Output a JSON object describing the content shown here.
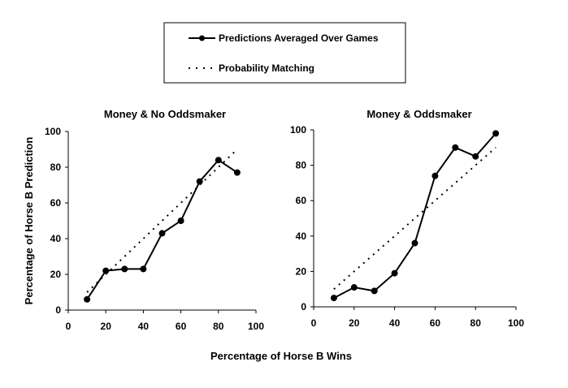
{
  "legend": {
    "series_line_label": "Predictions Averaged Over Games",
    "series_dotted_label": "Probability Matching",
    "placement": "top-center"
  },
  "shared_labels": {
    "xlabel": "Percentage of Horse B Wins",
    "ylabel": "Percentage of Horse B Prediction"
  },
  "chart_data": [
    {
      "type": "line",
      "title": "Money & No Oddsmaker",
      "xlabel": "Percentage of Horse B Wins",
      "ylabel": "Percentage of Horse B Prediction",
      "xlim": [
        0,
        100
      ],
      "ylim": [
        0,
        100
      ],
      "x_ticks": [
        "0",
        "20",
        "40",
        "60",
        "80",
        "100"
      ],
      "y_ticks": [
        "0",
        "20",
        "40",
        "60",
        "80",
        "100"
      ],
      "grid": false,
      "series": [
        {
          "name": "Predictions Averaged Over Games",
          "style": "solid-with-markers",
          "color": "#000000",
          "x": [
            10,
            20,
            30,
            40,
            50,
            60,
            70,
            80,
            90
          ],
          "y": [
            6,
            22,
            23,
            23,
            43,
            50,
            72,
            84,
            77
          ]
        },
        {
          "name": "Probability Matching",
          "style": "dotted",
          "color": "#000000",
          "x": [
            10,
            90
          ],
          "y": [
            10,
            90
          ]
        }
      ]
    },
    {
      "type": "line",
      "title": "Money & Oddsmaker",
      "xlabel": "Percentage of Horse B Wins",
      "ylabel": "Percentage of Horse B Prediction",
      "xlim": [
        0,
        100
      ],
      "ylim": [
        0,
        100
      ],
      "x_ticks": [
        "0",
        "20",
        "40",
        "60",
        "80",
        "100"
      ],
      "y_ticks": [
        "0",
        "20",
        "40",
        "60",
        "80",
        "100"
      ],
      "grid": false,
      "series": [
        {
          "name": "Predictions Averaged Over Games",
          "style": "solid-with-markers",
          "color": "#000000",
          "x": [
            10,
            20,
            30,
            40,
            50,
            60,
            70,
            80,
            90
          ],
          "y": [
            5,
            11,
            9,
            19,
            36,
            74,
            90,
            85,
            98
          ]
        },
        {
          "name": "Probability Matching",
          "style": "dotted",
          "color": "#000000",
          "x": [
            10,
            90
          ],
          "y": [
            10,
            90
          ]
        }
      ]
    }
  ]
}
